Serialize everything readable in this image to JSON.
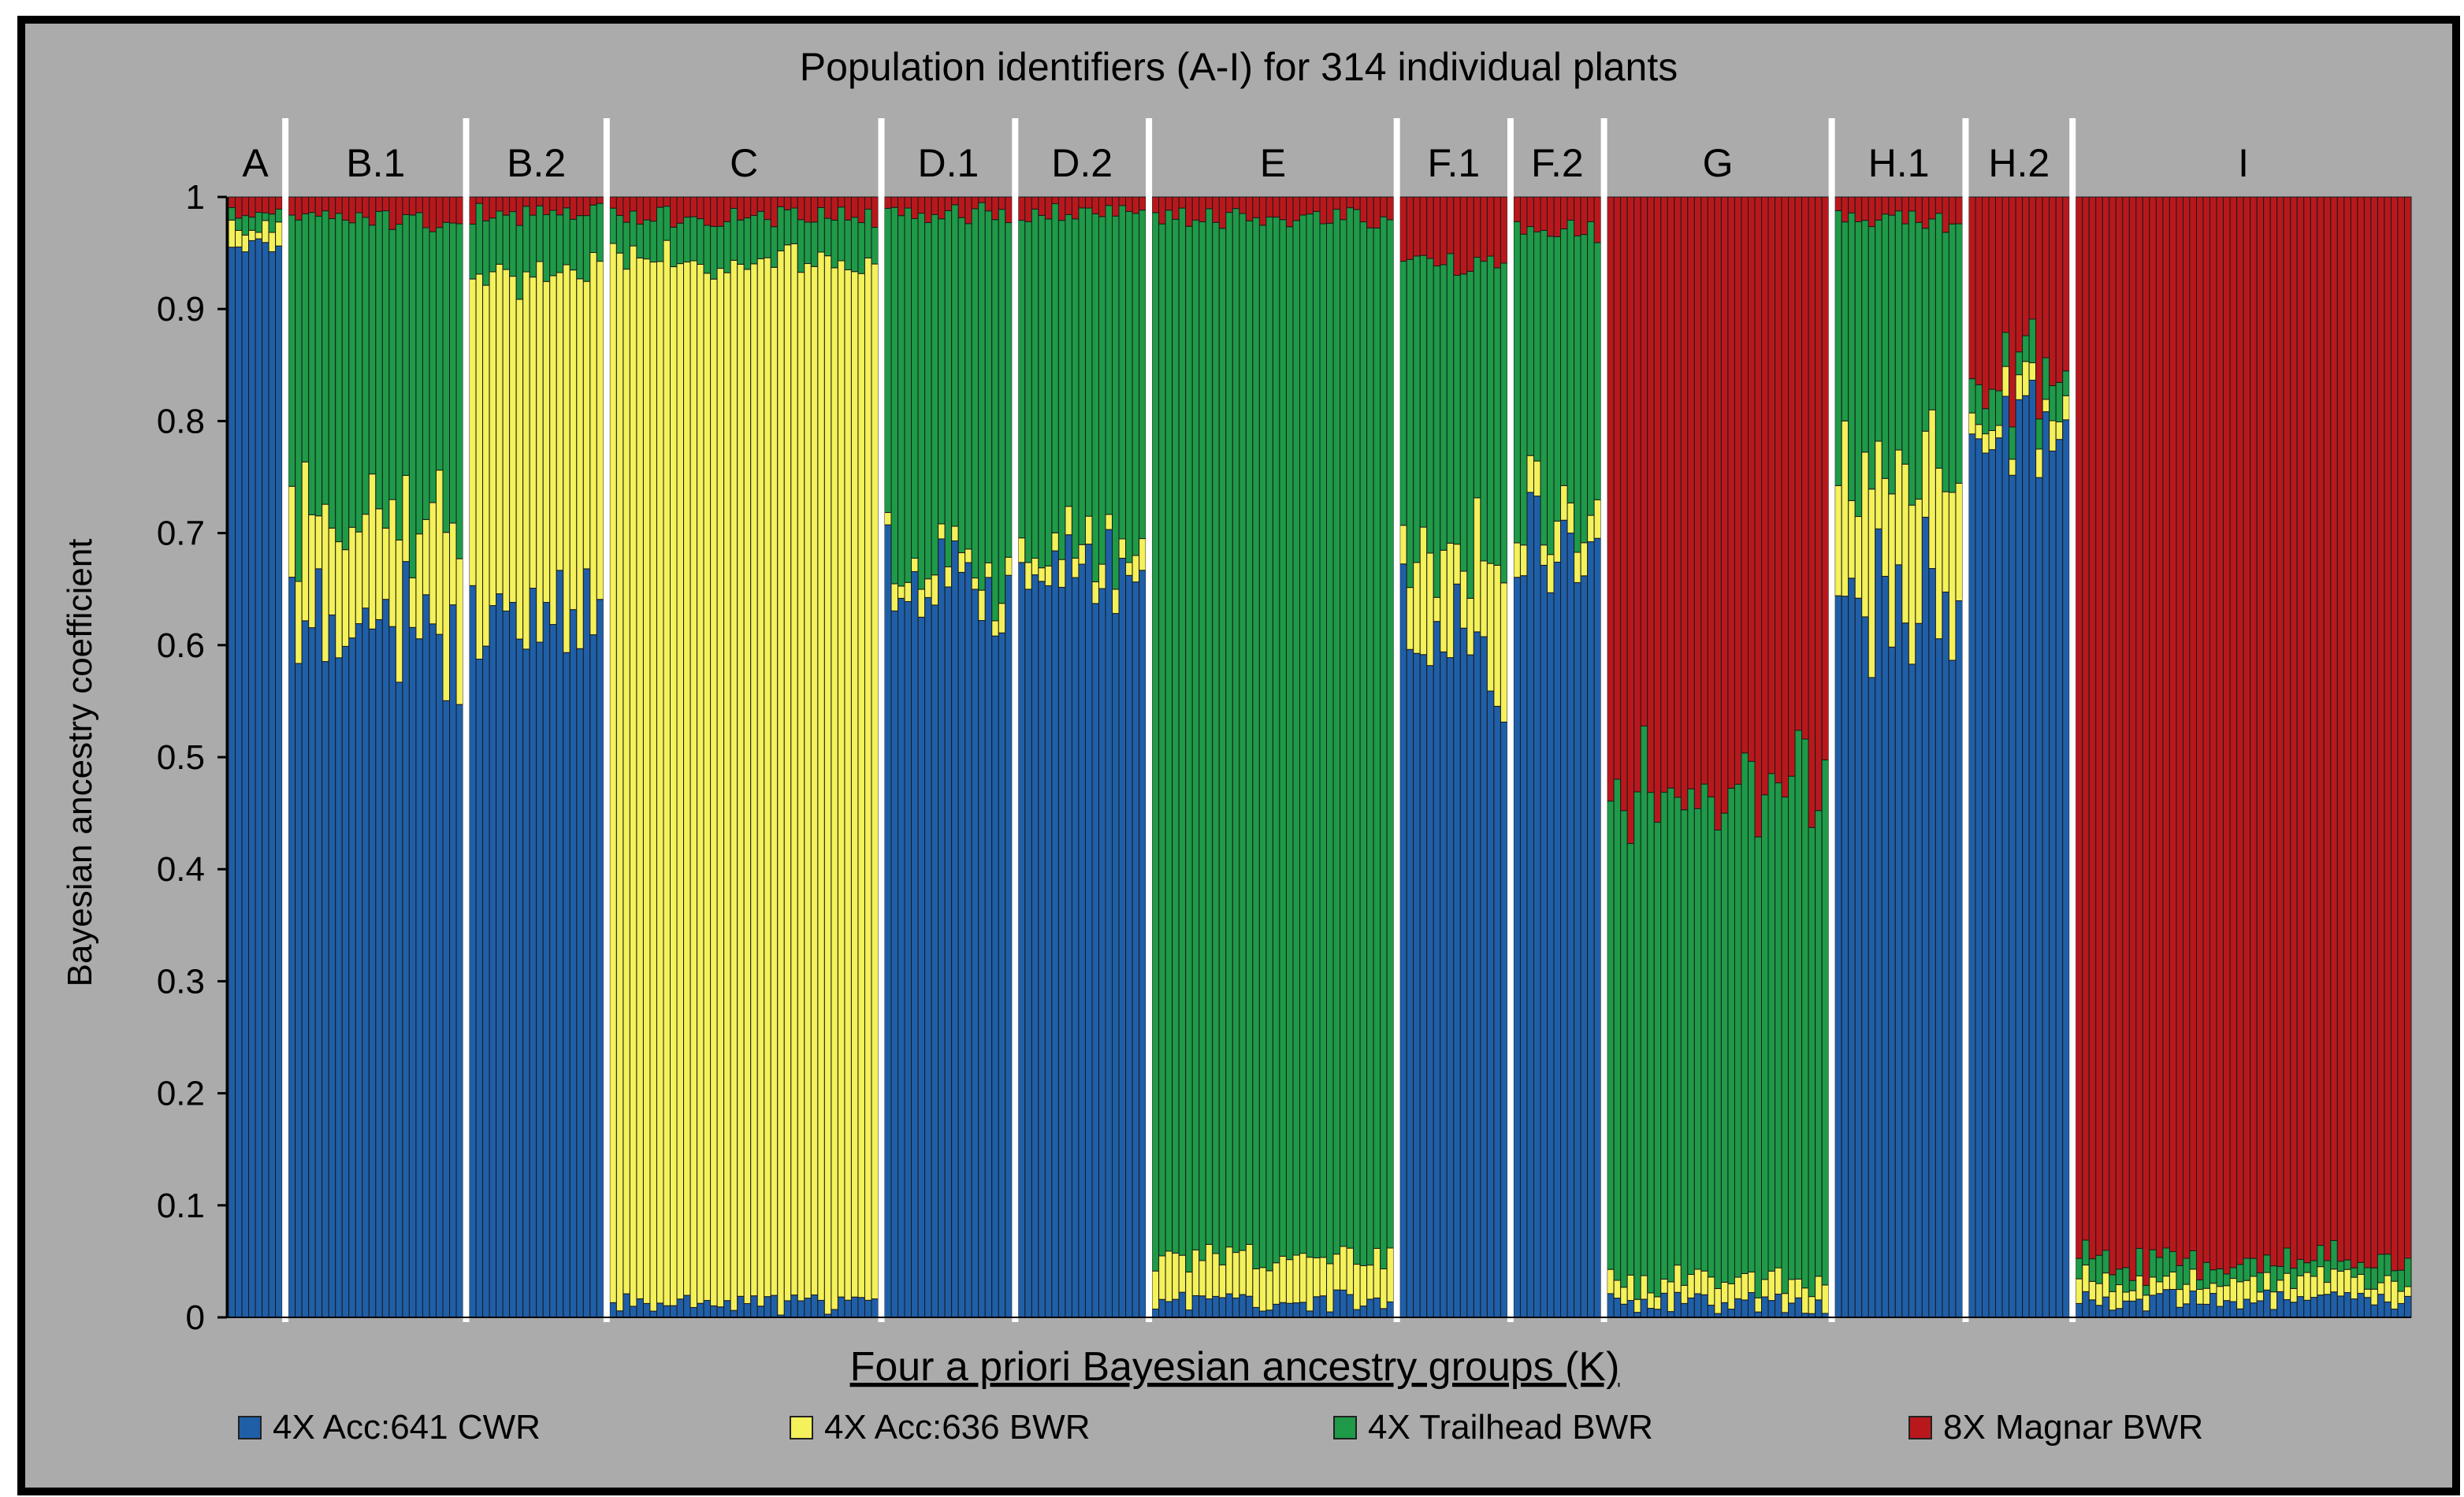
{
  "chart_data": {
    "type": "stacked_bar",
    "title": "Population identifiers (A-I) for 314 individual plants",
    "xlabel": "Four a priori Bayesian ancestry groups (K)",
    "ylabel": "Bayesian ancestry coefficient",
    "ylim": [
      0,
      1
    ],
    "yticks": [
      "0",
      "0.1",
      "0.2",
      "0.3",
      "0.4",
      "0.5",
      "0.6",
      "0.7",
      "0.8",
      "0.9",
      "1"
    ],
    "series": [
      {
        "name": "4X Acc:641 CWR",
        "color": "#1f5fa8"
      },
      {
        "name": "4X Acc:636 BWR",
        "color": "#f4f15a"
      },
      {
        "name": "4X Trailhead BWR",
        "color": "#1e9a48"
      },
      {
        "name": "8X Magnar BWR",
        "color": "#b8181c"
      }
    ],
    "groups": [
      {
        "label": "A",
        "n": 8,
        "mean": [
          0.985,
          0.005,
          0.005,
          0.005
        ]
      },
      {
        "label": "B.1",
        "n": 26,
        "mean": [
          0.61,
          0.1,
          0.28,
          0.01
        ]
      },
      {
        "label": "B.2",
        "n": 20,
        "mean": [
          0.63,
          0.32,
          0.045,
          0.005
        ]
      },
      {
        "label": "C",
        "n": 40,
        "mean": [
          0.002,
          0.96,
          0.03,
          0.008
        ]
      },
      {
        "label": "D.1",
        "n": 19,
        "mean": [
          0.66,
          0.01,
          0.325,
          0.005
        ]
      },
      {
        "label": "D.2",
        "n": 19,
        "mean": [
          0.68,
          0.01,
          0.305,
          0.005
        ]
      },
      {
        "label": "E",
        "n": 36,
        "mean": [
          0.005,
          0.03,
          0.955,
          0.01
        ]
      },
      {
        "label": "F.1",
        "n": 16,
        "mean": [
          0.61,
          0.08,
          0.26,
          0.05
        ]
      },
      {
        "label": "F.2",
        "n": 13,
        "mean": [
          0.7,
          0.02,
          0.26,
          0.02
        ]
      },
      {
        "label": "G",
        "n": 33,
        "mean": [
          0.003,
          0.01,
          0.45,
          0.537
        ]
      },
      {
        "label": "H.1",
        "n": 19,
        "mean": [
          0.64,
          0.13,
          0.22,
          0.01
        ]
      },
      {
        "label": "H.2",
        "n": 15,
        "mean": [
          0.82,
          0.01,
          0.02,
          0.15
        ]
      },
      {
        "label": "I",
        "n": 50,
        "mean": [
          0.005,
          0.007,
          0.008,
          0.98
        ]
      }
    ]
  }
}
